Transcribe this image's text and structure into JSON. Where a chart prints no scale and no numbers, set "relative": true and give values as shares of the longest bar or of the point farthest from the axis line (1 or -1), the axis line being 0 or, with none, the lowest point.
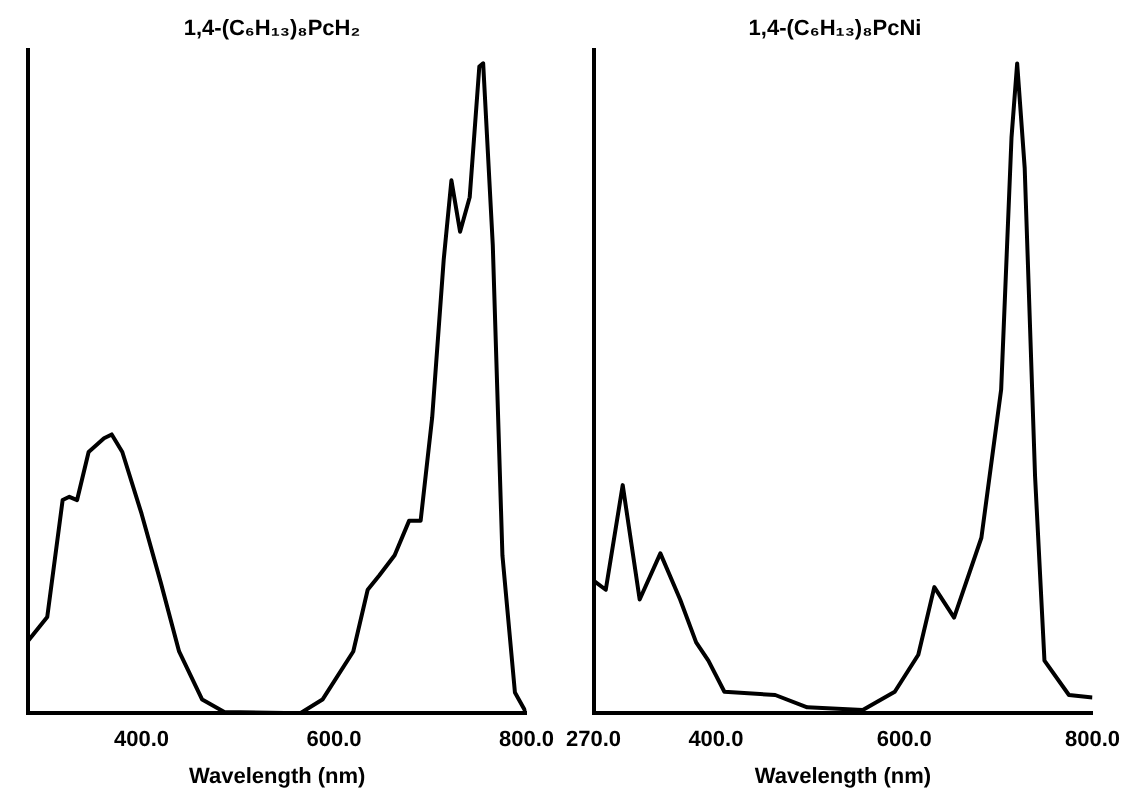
{
  "chart_data": [
    {
      "type": "line",
      "title": "1,4-(C₆H₁₃)₈PcH₂",
      "xlabel": "Wavelength (nm)",
      "relative": true,
      "grid": false,
      "legend": false,
      "marker": "none",
      "line_style": "solid",
      "xlim": [
        282,
        800
      ],
      "xticks": [
        {
          "value": 400,
          "label": "400.0"
        },
        {
          "value": 600,
          "label": "600.0"
        },
        {
          "value": 800,
          "label": "800.0"
        }
      ],
      "series": [
        {
          "color": "#000000",
          "x": [
            282,
            302,
            318,
            325,
            333,
            345,
            361,
            369,
            380,
            400,
            420,
            439,
            463,
            486,
            565,
            588,
            620,
            635,
            647,
            663,
            678,
            690,
            702,
            714,
            722,
            731,
            741,
            751,
            755,
            765,
            775,
            788,
            800
          ],
          "values": [
            0.111,
            0.148,
            0.328,
            0.333,
            0.328,
            0.402,
            0.423,
            0.429,
            0.402,
            0.307,
            0.201,
            0.095,
            0.021,
            0.002,
            0,
            0.021,
            0.095,
            0.19,
            0.212,
            0.243,
            0.296,
            0.296,
            0.455,
            0.698,
            0.82,
            0.741,
            0.794,
            0.995,
            1,
            0.72,
            0.243,
            0.032,
            0
          ]
        }
      ]
    },
    {
      "type": "line",
      "title": "1,4-(C₆H₁₃)₈PcNi",
      "xlabel": "Wavelength (nm)",
      "relative": true,
      "grid": false,
      "legend": false,
      "marker": "none",
      "line_style": "solid",
      "xlim": [
        270,
        800
      ],
      "xticks": [
        {
          "value": 270,
          "label": "270.0"
        },
        {
          "value": 400,
          "label": "400.0"
        },
        {
          "value": 600,
          "label": "600.0"
        },
        {
          "value": 800,
          "label": "800.0"
        }
      ],
      "series": [
        {
          "color": "#000000",
          "x": [
            270,
            283,
            301,
            319,
            341,
            362,
            379,
            392,
            409,
            463,
            497,
            556,
            590,
            615,
            632,
            653,
            682,
            703,
            714,
            720,
            728,
            739,
            749,
            775,
            800
          ],
          "values": [
            0.204,
            0.19,
            0.351,
            0.175,
            0.246,
            0.175,
            0.109,
            0.081,
            0.033,
            0.028,
            0.009,
            0.005,
            0.033,
            0.09,
            0.194,
            0.147,
            0.27,
            0.498,
            0.886,
            1,
            0.839,
            0.365,
            0.081,
            0.028,
            0.024
          ]
        }
      ]
    }
  ]
}
